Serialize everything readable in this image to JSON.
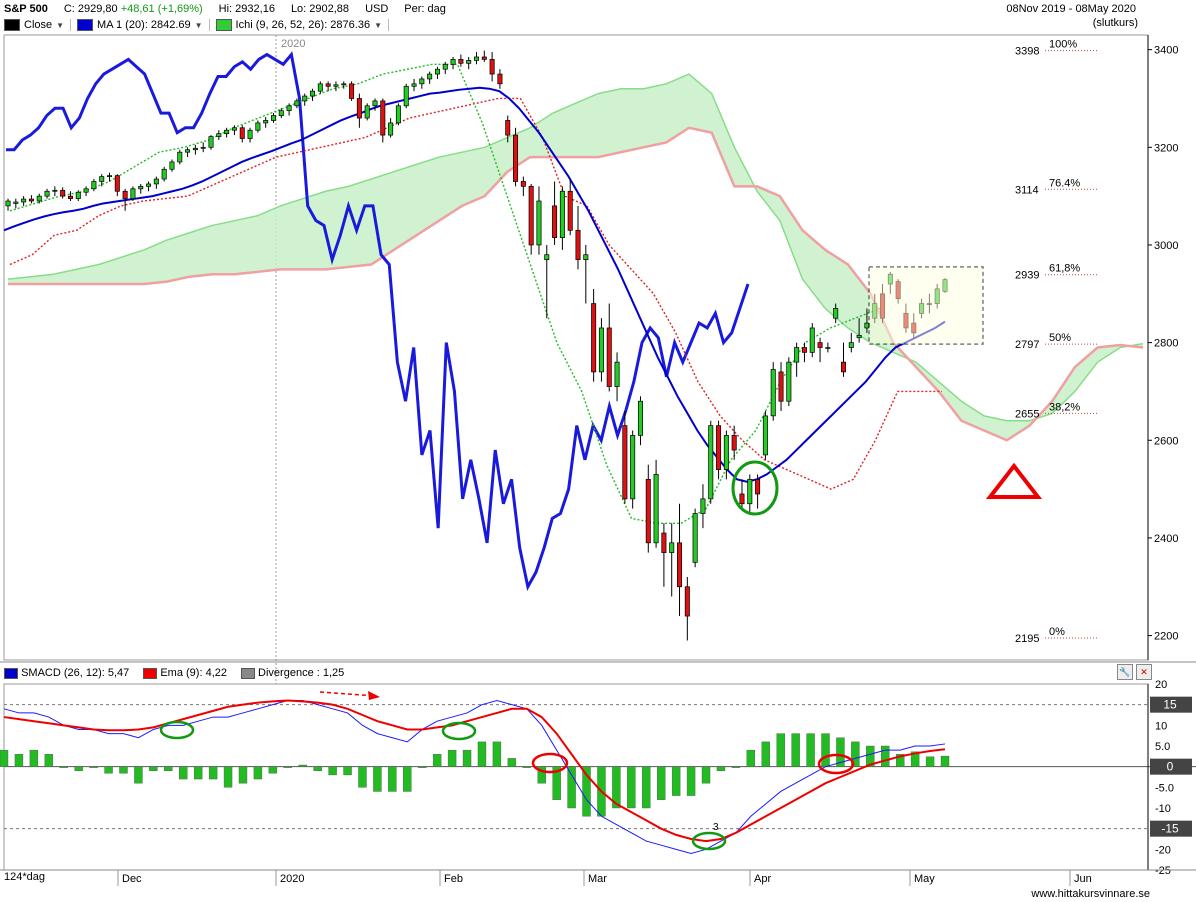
{
  "header": {
    "symbol": "S&P 500",
    "close_label": "C: 2929,80",
    "change_label": "+48,61 (+1,69%)",
    "hi_label": "Hi: 2932,16",
    "lo_label": "Lo: 2902,88",
    "currency": "USD",
    "period_label": "Per: dag",
    "date_range": "08Nov 2019 - 08May 2020",
    "price_type": "(slutkurs)"
  },
  "legend": [
    {
      "label": "Close",
      "color": "#000000"
    },
    {
      "label": "MA 1 (20): 2842.69",
      "color": "#0000cc"
    },
    {
      "label": "Ichi (9, 26, 52, 26): 2876.36",
      "color": "#33cc33"
    }
  ],
  "year_marker": "2020",
  "indicator_legend": [
    {
      "label": "SMACD (26, 12): 5,47",
      "color": "#0000cc"
    },
    {
      "label": "Ema (9): 4,22",
      "color": "#ee0000"
    },
    {
      "label": "Divergence : 1,25",
      "color": "#888888"
    }
  ],
  "period_bottom_label": "124*dag",
  "footer_url": "www.hittakursvinnare.se",
  "colors": {
    "up": "#22cc22",
    "down": "#dd1111",
    "ma": "#0000cc",
    "macd": "#1a1aff",
    "signal": "#ee0000",
    "hist": "#22bb22",
    "cloud_up": "#c8f0c8",
    "cloud_down": "#f8c8c8"
  },
  "chart_data": [
    {
      "type": "candlestick",
      "title": "S&P 500",
      "x_ticks": [
        "Dec",
        "2020",
        "Feb",
        "Mar",
        "Apr",
        "May",
        "Jun"
      ],
      "y_ticks": [
        2200,
        2400,
        2600,
        2800,
        3000,
        3200,
        3400
      ],
      "ylim": [
        2150,
        3430
      ],
      "fib_levels": [
        {
          "label": "100%",
          "value": 3398
        },
        {
          "label": "76,4%",
          "value": 3114
        },
        {
          "label": "61,8%",
          "value": 2939
        },
        {
          "label": "50%",
          "value": 2797
        },
        {
          "label": "38,2%",
          "value": 2655
        },
        {
          "label": "0%",
          "value": 2195
        }
      ],
      "fib_display": [
        "100%",
        "76.4%",
        "61,8%",
        "50%",
        "38,2%",
        "0%"
      ],
      "candles": [
        {
          "o": 3080,
          "h": 3095,
          "l": 3070,
          "c": 3090
        },
        {
          "o": 3085,
          "h": 3095,
          "l": 3075,
          "c": 3088
        },
        {
          "o": 3088,
          "h": 3100,
          "l": 3080,
          "c": 3094
        },
        {
          "o": 3094,
          "h": 3102,
          "l": 3085,
          "c": 3090
        },
        {
          "o": 3090,
          "h": 3105,
          "l": 3085,
          "c": 3100
        },
        {
          "o": 3100,
          "h": 3115,
          "l": 3095,
          "c": 3110
        },
        {
          "o": 3110,
          "h": 3120,
          "l": 3100,
          "c": 3112
        },
        {
          "o": 3112,
          "h": 3118,
          "l": 3095,
          "c": 3100
        },
        {
          "o": 3100,
          "h": 3110,
          "l": 3090,
          "c": 3095
        },
        {
          "o": 3095,
          "h": 3112,
          "l": 3090,
          "c": 3108
        },
        {
          "o": 3108,
          "h": 3120,
          "l": 3100,
          "c": 3115
        },
        {
          "o": 3115,
          "h": 3135,
          "l": 3110,
          "c": 3130
        },
        {
          "o": 3130,
          "h": 3145,
          "l": 3120,
          "c": 3140
        },
        {
          "o": 3140,
          "h": 3148,
          "l": 3130,
          "c": 3142
        },
        {
          "o": 3142,
          "h": 3145,
          "l": 3100,
          "c": 3110
        },
        {
          "o": 3110,
          "h": 3115,
          "l": 3070,
          "c": 3095
        },
        {
          "o": 3095,
          "h": 3120,
          "l": 3090,
          "c": 3115
        },
        {
          "o": 3115,
          "h": 3125,
          "l": 3105,
          "c": 3120
        },
        {
          "o": 3120,
          "h": 3130,
          "l": 3110,
          "c": 3125
        },
        {
          "o": 3125,
          "h": 3140,
          "l": 3115,
          "c": 3135
        },
        {
          "o": 3135,
          "h": 3160,
          "l": 3130,
          "c": 3155
        },
        {
          "o": 3155,
          "h": 3175,
          "l": 3150,
          "c": 3170
        },
        {
          "o": 3170,
          "h": 3195,
          "l": 3165,
          "c": 3190
        },
        {
          "o": 3190,
          "h": 3200,
          "l": 3180,
          "c": 3195
        },
        {
          "o": 3195,
          "h": 3205,
          "l": 3185,
          "c": 3198
        },
        {
          "o": 3198,
          "h": 3210,
          "l": 3190,
          "c": 3200
        },
        {
          "o": 3200,
          "h": 3225,
          "l": 3195,
          "c": 3222
        },
        {
          "o": 3222,
          "h": 3235,
          "l": 3215,
          "c": 3228
        },
        {
          "o": 3228,
          "h": 3240,
          "l": 3220,
          "c": 3235
        },
        {
          "o": 3235,
          "h": 3245,
          "l": 3225,
          "c": 3240
        },
        {
          "o": 3240,
          "h": 3245,
          "l": 3210,
          "c": 3218
        },
        {
          "o": 3218,
          "h": 3240,
          "l": 3210,
          "c": 3235
        },
        {
          "o": 3235,
          "h": 3255,
          "l": 3230,
          "c": 3250
        },
        {
          "o": 3250,
          "h": 3262,
          "l": 3240,
          "c": 3255
        },
        {
          "o": 3255,
          "h": 3270,
          "l": 3250,
          "c": 3265
        },
        {
          "o": 3265,
          "h": 3280,
          "l": 3260,
          "c": 3275
        },
        {
          "o": 3275,
          "h": 3290,
          "l": 3265,
          "c": 3285
        },
        {
          "o": 3285,
          "h": 3300,
          "l": 3280,
          "c": 3295
        },
        {
          "o": 3295,
          "h": 3310,
          "l": 3285,
          "c": 3305
        },
        {
          "o": 3305,
          "h": 3320,
          "l": 3295,
          "c": 3315
        },
        {
          "o": 3315,
          "h": 3335,
          "l": 3310,
          "c": 3330
        },
        {
          "o": 3330,
          "h": 3335,
          "l": 3315,
          "c": 3325
        },
        {
          "o": 3325,
          "h": 3335,
          "l": 3315,
          "c": 3328
        },
        {
          "o": 3328,
          "h": 3335,
          "l": 3320,
          "c": 3330
        },
        {
          "o": 3330,
          "h": 3335,
          "l": 3295,
          "c": 3300
        },
        {
          "o": 3300,
          "h": 3310,
          "l": 3240,
          "c": 3260
        },
        {
          "o": 3260,
          "h": 3290,
          "l": 3255,
          "c": 3285
        },
        {
          "o": 3285,
          "h": 3300,
          "l": 3275,
          "c": 3295
        },
        {
          "o": 3295,
          "h": 3300,
          "l": 3210,
          "c": 3225
        },
        {
          "o": 3225,
          "h": 3260,
          "l": 3220,
          "c": 3250
        },
        {
          "o": 3250,
          "h": 3290,
          "l": 3245,
          "c": 3285
        },
        {
          "o": 3285,
          "h": 3330,
          "l": 3280,
          "c": 3325
        },
        {
          "o": 3325,
          "h": 3340,
          "l": 3315,
          "c": 3330
        },
        {
          "o": 3330,
          "h": 3345,
          "l": 3320,
          "c": 3340
        },
        {
          "o": 3340,
          "h": 3355,
          "l": 3330,
          "c": 3350
        },
        {
          "o": 3350,
          "h": 3365,
          "l": 3340,
          "c": 3360
        },
        {
          "o": 3360,
          "h": 3375,
          "l": 3350,
          "c": 3370
        },
        {
          "o": 3370,
          "h": 3385,
          "l": 3360,
          "c": 3380
        },
        {
          "o": 3380,
          "h": 3390,
          "l": 3365,
          "c": 3372
        },
        {
          "o": 3372,
          "h": 3385,
          "l": 3360,
          "c": 3378
        },
        {
          "o": 3378,
          "h": 3395,
          "l": 3370,
          "c": 3385
        },
        {
          "o": 3385,
          "h": 3398,
          "l": 3375,
          "c": 3380
        },
        {
          "o": 3380,
          "h": 3395,
          "l": 3335,
          "c": 3350
        },
        {
          "o": 3350,
          "h": 3360,
          "l": 3320,
          "c": 3330
        },
        {
          "o": 3255,
          "h": 3265,
          "l": 3210,
          "c": 3225
        },
        {
          "o": 3225,
          "h": 3240,
          "l": 3120,
          "c": 3130
        },
        {
          "o": 3130,
          "h": 3140,
          "l": 3100,
          "c": 3120
        },
        {
          "o": 3120,
          "h": 3125,
          "l": 2980,
          "c": 3000
        },
        {
          "o": 3000,
          "h": 3120,
          "l": 2980,
          "c": 3090
        },
        {
          "o": 2970,
          "h": 3000,
          "l": 2850,
          "c": 2980
        },
        {
          "o": 3080,
          "h": 3130,
          "l": 3000,
          "c": 3015
        },
        {
          "o": 3015,
          "h": 3120,
          "l": 2990,
          "c": 3110
        },
        {
          "o": 3110,
          "h": 3135,
          "l": 3020,
          "c": 3030
        },
        {
          "o": 3030,
          "h": 3080,
          "l": 2950,
          "c": 2970
        },
        {
          "o": 2970,
          "h": 3000,
          "l": 2880,
          "c": 2980
        },
        {
          "o": 2880,
          "h": 2910,
          "l": 2720,
          "c": 2740
        },
        {
          "o": 2740,
          "h": 2850,
          "l": 2720,
          "c": 2830
        },
        {
          "o": 2830,
          "h": 2880,
          "l": 2700,
          "c": 2710
        },
        {
          "o": 2710,
          "h": 2780,
          "l": 2680,
          "c": 2760
        },
        {
          "o": 2630,
          "h": 2660,
          "l": 2470,
          "c": 2480
        },
        {
          "o": 2480,
          "h": 2620,
          "l": 2460,
          "c": 2610
        },
        {
          "o": 2610,
          "h": 2690,
          "l": 2590,
          "c": 2680
        },
        {
          "o": 2520,
          "h": 2550,
          "l": 2370,
          "c": 2390
        },
        {
          "o": 2390,
          "h": 2560,
          "l": 2380,
          "c": 2530
        },
        {
          "o": 2410,
          "h": 2430,
          "l": 2300,
          "c": 2370
        },
        {
          "o": 2370,
          "h": 2430,
          "l": 2280,
          "c": 2390
        },
        {
          "o": 2390,
          "h": 2470,
          "l": 2240,
          "c": 2300
        },
        {
          "o": 2300,
          "h": 2320,
          "l": 2190,
          "c": 2240
        },
        {
          "o": 2350,
          "h": 2460,
          "l": 2340,
          "c": 2450
        },
        {
          "o": 2450,
          "h": 2510,
          "l": 2420,
          "c": 2480
        },
        {
          "o": 2480,
          "h": 2640,
          "l": 2470,
          "c": 2630
        },
        {
          "o": 2630,
          "h": 2640,
          "l": 2520,
          "c": 2540
        },
        {
          "o": 2540,
          "h": 2620,
          "l": 2520,
          "c": 2610
        },
        {
          "o": 2610,
          "h": 2630,
          "l": 2560,
          "c": 2580
        },
        {
          "o": 2490,
          "h": 2520,
          "l": 2460,
          "c": 2470
        },
        {
          "o": 2470,
          "h": 2530,
          "l": 2450,
          "c": 2520
        },
        {
          "o": 2520,
          "h": 2530,
          "l": 2460,
          "c": 2490
        },
        {
          "o": 2570,
          "h": 2660,
          "l": 2560,
          "c": 2650
        },
        {
          "o": 2650,
          "h": 2760,
          "l": 2640,
          "c": 2745
        },
        {
          "o": 2740,
          "h": 2760,
          "l": 2660,
          "c": 2680
        },
        {
          "o": 2680,
          "h": 2770,
          "l": 2670,
          "c": 2760
        },
        {
          "o": 2760,
          "h": 2800,
          "l": 2730,
          "c": 2790
        },
        {
          "o": 2790,
          "h": 2800,
          "l": 2760,
          "c": 2780
        },
        {
          "o": 2780,
          "h": 2840,
          "l": 2770,
          "c": 2830
        },
        {
          "o": 2800,
          "h": 2810,
          "l": 2760,
          "c": 2790
        },
        {
          "o": 2790,
          "h": 2800,
          "l": 2780,
          "c": 2790
        },
        {
          "o": 2850,
          "h": 2880,
          "l": 2840,
          "c": 2870
        },
        {
          "o": 2760,
          "h": 2800,
          "l": 2730,
          "c": 2740
        },
        {
          "o": 2790,
          "h": 2820,
          "l": 2780,
          "c": 2800
        },
        {
          "o": 2810,
          "h": 2850,
          "l": 2800,
          "c": 2815
        },
        {
          "o": 2830,
          "h": 2870,
          "l": 2820,
          "c": 2840
        },
        {
          "o": 2850,
          "h": 2900,
          "l": 2840,
          "c": 2880
        },
        {
          "o": 2900,
          "h": 2920,
          "l": 2840,
          "c": 2850
        },
        {
          "o": 2920,
          "h": 2945,
          "l": 2900,
          "c": 2940
        },
        {
          "o": 2925,
          "h": 2930,
          "l": 2880,
          "c": 2890
        },
        {
          "o": 2860,
          "h": 2880,
          "l": 2820,
          "c": 2830
        },
        {
          "o": 2840,
          "h": 2860,
          "l": 2810,
          "c": 2820
        },
        {
          "o": 2860,
          "h": 2890,
          "l": 2850,
          "c": 2880
        },
        {
          "o": 2880,
          "h": 2900,
          "l": 2860,
          "c": 2878
        },
        {
          "o": 2880,
          "h": 2920,
          "l": 2870,
          "c": 2910
        },
        {
          "o": 2905,
          "h": 2932,
          "l": 2902,
          "c": 2929
        }
      ],
      "ma20": [
        3030,
        3038,
        3045,
        3052,
        3058,
        3063,
        3067,
        3070,
        3074,
        3080,
        3085,
        3088,
        3091,
        3094,
        3097,
        3100,
        3105,
        3110,
        3115,
        3122,
        3130,
        3140,
        3150,
        3160,
        3170,
        3178,
        3185,
        3192,
        3200,
        3208,
        3215,
        3225,
        3235,
        3245,
        3255,
        3263,
        3270,
        3278,
        3285,
        3290,
        3295,
        3300,
        3305,
        3310,
        3312,
        3315,
        3318,
        3320,
        3322,
        3320,
        3315,
        3300,
        3280,
        3255,
        3230,
        3200,
        3170,
        3140,
        3105,
        3070,
        3030,
        2990,
        2950,
        2905,
        2860,
        2815,
        2770,
        2730,
        2690,
        2655,
        2620,
        2590,
        2565,
        2540,
        2520,
        2515,
        2520,
        2530,
        2545,
        2560,
        2580,
        2600,
        2620,
        2640,
        2660,
        2680,
        2700,
        2720,
        2745,
        2770,
        2790,
        2800,
        2810,
        2820,
        2830,
        2843
      ],
      "macd_blue": [
        14,
        13,
        13,
        12,
        10,
        9,
        9,
        8,
        8,
        7,
        9,
        10,
        10,
        11,
        12,
        12,
        13,
        14,
        15,
        16,
        16,
        15,
        14,
        13,
        10,
        8,
        7,
        6,
        9,
        11,
        12,
        13,
        15,
        16,
        15,
        14,
        10,
        4,
        -2,
        -8,
        -12,
        -14,
        -16,
        -18,
        -19,
        -20,
        -21,
        -20,
        -18,
        -16,
        -12,
        -9,
        -6,
        -4,
        -2,
        0,
        1,
        2,
        3,
        4,
        4,
        5,
        5,
        5.5
      ],
      "macd_red": [
        12,
        11.5,
        11,
        10.5,
        10,
        9.5,
        9,
        8.8,
        8.8,
        9,
        9.5,
        10.5,
        11.5,
        12.5,
        13.5,
        14.5,
        15,
        15.5,
        15.8,
        16,
        15.8,
        15.5,
        15,
        14,
        12.5,
        11,
        10,
        9,
        9,
        9.5,
        10,
        11,
        12,
        13,
        14,
        14,
        12,
        8,
        3,
        -2,
        -6,
        -9,
        -11,
        -13,
        -15,
        -16.5,
        -17.5,
        -18,
        -17.5,
        -16,
        -14,
        -12,
        -10,
        -8,
        -6,
        -4,
        -2.5,
        -1,
        0.5,
        1.5,
        2.5,
        3.2,
        3.8,
        4.22
      ],
      "ylim_macd": [
        -25,
        20
      ],
      "macd_ticks": [
        20,
        10,
        5.0,
        -5.0,
        -10,
        -15,
        -20,
        -25
      ],
      "macd_labels": [
        "20",
        "10",
        "5.0",
        "-5.0",
        "-10",
        "-15",
        "-20",
        "-25"
      ],
      "macd_boxes": [
        {
          "label": "15",
          "value": 15
        },
        {
          "label": "0",
          "value": 0
        },
        {
          "label": "-15",
          "value": -15
        }
      ],
      "macd_peak_label": "3"
    }
  ]
}
